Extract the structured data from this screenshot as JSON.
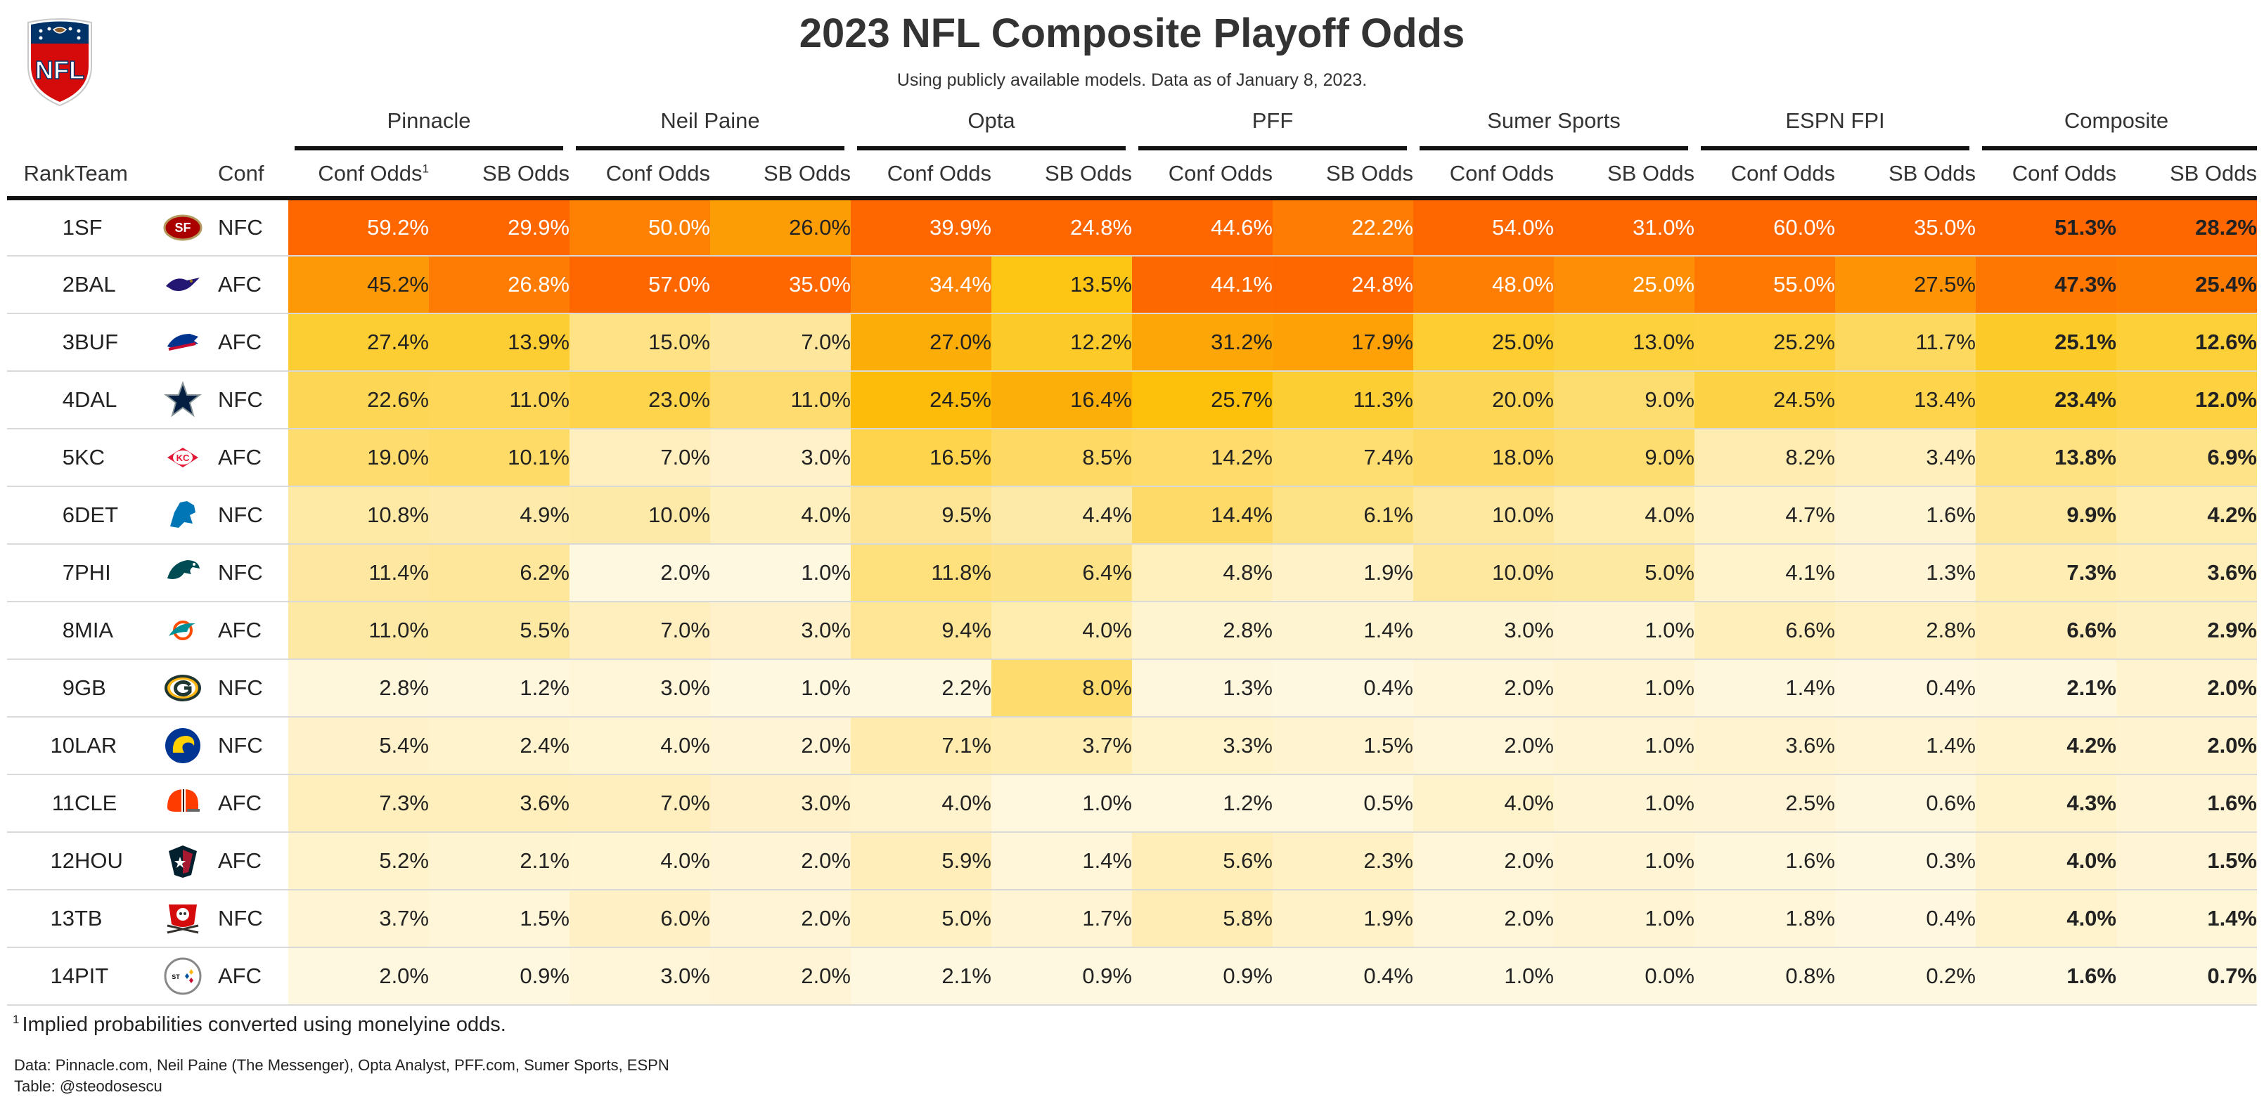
{
  "title": "2023 NFL Composite Playoff Odds",
  "subtitle": "Using publicly available models. Data as of January 8, 2023.",
  "logo_text": "NFL",
  "headers": {
    "rank": "Rank",
    "team": "Team",
    "conf": "Conf",
    "conf_odds": "Conf Odds",
    "sb_odds": "SB Odds",
    "footnote_marker": "1"
  },
  "sources": [
    "Pinnacle",
    "Neil Paine",
    "Opta",
    "PFF",
    "Sumer Sports",
    "ESPN FPI",
    "Composite"
  ],
  "footnote_marker": "1",
  "footnote": "Implied probabilities converted using monelyine odds.",
  "source_line": "Data: Pinnacle.com, Neil Paine (The Messenger), Opta Analyst, PFF.com, Sumer Sports, ESPN",
  "credit_line": "Table: @steodosescu",
  "colors": {
    "scale_low": "#fff8e1",
    "scale_mid": "#fdc40b",
    "scale_high": "#fe6600",
    "rule": "#111111",
    "row_divider": "#d9d9d9"
  },
  "chart_data": {
    "type": "table",
    "color_scale": "per-column gradient from pale cream (low) through gold to orange (high)",
    "columns": [
      "Rank",
      "Team",
      "Conf",
      "Pinnacle Conf Odds",
      "Pinnacle SB Odds",
      "Neil Paine Conf Odds",
      "Neil Paine SB Odds",
      "Opta Conf Odds",
      "Opta SB Odds",
      "PFF Conf Odds",
      "PFF SB Odds",
      "Sumer Sports Conf Odds",
      "Sumer Sports SB Odds",
      "ESPN FPI Conf Odds",
      "ESPN FPI SB Odds",
      "Composite Conf Odds",
      "Composite SB Odds"
    ],
    "rows": [
      {
        "rank": "1",
        "team": "SF",
        "logo": "49ers-logo",
        "conf": "NFC",
        "values": [
          "59.2%",
          "29.9%",
          "50.0%",
          "26.0%",
          "39.9%",
          "24.8%",
          "44.6%",
          "22.2%",
          "54.0%",
          "31.0%",
          "60.0%",
          "35.0%",
          "51.3%",
          "28.2%"
        ]
      },
      {
        "rank": "2",
        "team": "BAL",
        "logo": "ravens-logo",
        "conf": "AFC",
        "values": [
          "45.2%",
          "26.8%",
          "57.0%",
          "35.0%",
          "34.4%",
          "13.5%",
          "44.1%",
          "24.8%",
          "48.0%",
          "25.0%",
          "55.0%",
          "27.5%",
          "47.3%",
          "25.4%"
        ]
      },
      {
        "rank": "3",
        "team": "BUF",
        "logo": "bills-logo",
        "conf": "AFC",
        "values": [
          "27.4%",
          "13.9%",
          "15.0%",
          "7.0%",
          "27.0%",
          "12.2%",
          "31.2%",
          "17.9%",
          "25.0%",
          "13.0%",
          "25.2%",
          "11.7%",
          "25.1%",
          "12.6%"
        ]
      },
      {
        "rank": "4",
        "team": "DAL",
        "logo": "cowboys-logo",
        "conf": "NFC",
        "values": [
          "22.6%",
          "11.0%",
          "23.0%",
          "11.0%",
          "24.5%",
          "16.4%",
          "25.7%",
          "11.3%",
          "20.0%",
          "9.0%",
          "24.5%",
          "13.4%",
          "23.4%",
          "12.0%"
        ]
      },
      {
        "rank": "5",
        "team": "KC",
        "logo": "chiefs-logo",
        "conf": "AFC",
        "values": [
          "19.0%",
          "10.1%",
          "7.0%",
          "3.0%",
          "16.5%",
          "8.5%",
          "14.2%",
          "7.4%",
          "18.0%",
          "9.0%",
          "8.2%",
          "3.4%",
          "13.8%",
          "6.9%"
        ]
      },
      {
        "rank": "6",
        "team": "DET",
        "logo": "lions-logo",
        "conf": "NFC",
        "values": [
          "10.8%",
          "4.9%",
          "10.0%",
          "4.0%",
          "9.5%",
          "4.4%",
          "14.4%",
          "6.1%",
          "10.0%",
          "4.0%",
          "4.7%",
          "1.6%",
          "9.9%",
          "4.2%"
        ]
      },
      {
        "rank": "7",
        "team": "PHI",
        "logo": "eagles-logo",
        "conf": "NFC",
        "values": [
          "11.4%",
          "6.2%",
          "2.0%",
          "1.0%",
          "11.8%",
          "6.4%",
          "4.8%",
          "1.9%",
          "10.0%",
          "5.0%",
          "4.1%",
          "1.3%",
          "7.3%",
          "3.6%"
        ]
      },
      {
        "rank": "8",
        "team": "MIA",
        "logo": "dolphins-logo",
        "conf": "AFC",
        "values": [
          "11.0%",
          "5.5%",
          "7.0%",
          "3.0%",
          "9.4%",
          "4.0%",
          "2.8%",
          "1.4%",
          "3.0%",
          "1.0%",
          "6.6%",
          "2.8%",
          "6.6%",
          "2.9%"
        ]
      },
      {
        "rank": "9",
        "team": "GB",
        "logo": "packers-logo",
        "conf": "NFC",
        "values": [
          "2.8%",
          "1.2%",
          "3.0%",
          "1.0%",
          "2.2%",
          "8.0%",
          "1.3%",
          "0.4%",
          "2.0%",
          "1.0%",
          "1.4%",
          "0.4%",
          "2.1%",
          "2.0%"
        ]
      },
      {
        "rank": "10",
        "team": "LAR",
        "logo": "rams-logo",
        "conf": "NFC",
        "values": [
          "5.4%",
          "2.4%",
          "4.0%",
          "2.0%",
          "7.1%",
          "3.7%",
          "3.3%",
          "1.5%",
          "2.0%",
          "1.0%",
          "3.6%",
          "1.4%",
          "4.2%",
          "2.0%"
        ]
      },
      {
        "rank": "11",
        "team": "CLE",
        "logo": "browns-logo",
        "conf": "AFC",
        "values": [
          "7.3%",
          "3.6%",
          "7.0%",
          "3.0%",
          "4.0%",
          "1.0%",
          "1.2%",
          "0.5%",
          "4.0%",
          "1.0%",
          "2.5%",
          "0.6%",
          "4.3%",
          "1.6%"
        ]
      },
      {
        "rank": "12",
        "team": "HOU",
        "logo": "texans-logo",
        "conf": "AFC",
        "values": [
          "5.2%",
          "2.1%",
          "4.0%",
          "2.0%",
          "5.9%",
          "1.4%",
          "5.6%",
          "2.3%",
          "2.0%",
          "1.0%",
          "1.6%",
          "0.3%",
          "4.0%",
          "1.5%"
        ]
      },
      {
        "rank": "13",
        "team": "TB",
        "logo": "buccaneers-logo",
        "conf": "NFC",
        "values": [
          "3.7%",
          "1.5%",
          "6.0%",
          "2.0%",
          "5.0%",
          "1.7%",
          "5.8%",
          "1.9%",
          "2.0%",
          "1.0%",
          "1.8%",
          "0.4%",
          "4.0%",
          "1.4%"
        ]
      },
      {
        "rank": "14",
        "team": "PIT",
        "logo": "steelers-logo",
        "conf": "AFC",
        "values": [
          "2.0%",
          "0.9%",
          "3.0%",
          "2.0%",
          "2.1%",
          "0.9%",
          "0.9%",
          "0.4%",
          "1.0%",
          "0.0%",
          "0.8%",
          "0.2%",
          "1.6%",
          "0.7%"
        ]
      }
    ]
  }
}
